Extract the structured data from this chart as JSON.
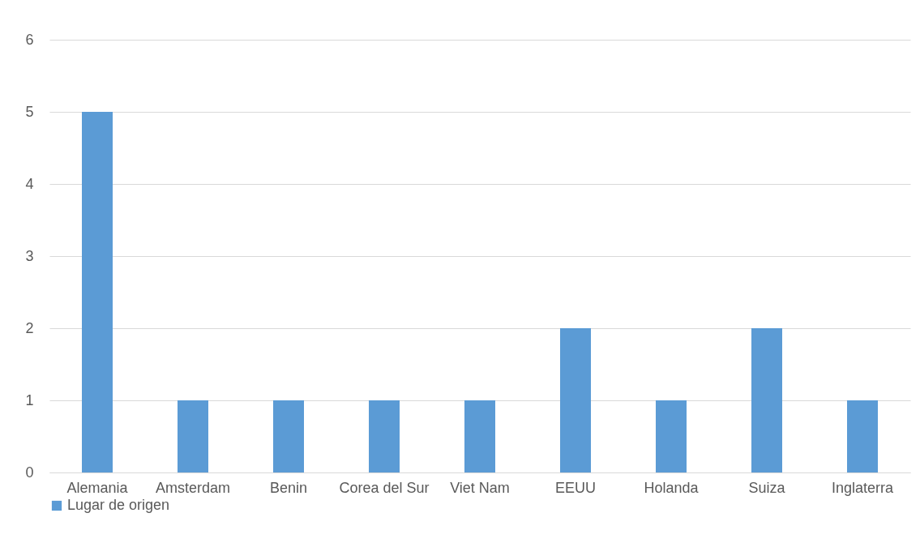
{
  "chart_data": {
    "type": "bar",
    "categories": [
      "Alemania",
      "Amsterdam",
      "Benin",
      "Corea del Sur",
      "Viet Nam",
      "EEUU",
      "Holanda",
      "Suiza",
      "Inglaterra"
    ],
    "series": [
      {
        "name": "Lugar de origen",
        "color": "#5b9bd5",
        "values": [
          5,
          1,
          1,
          1,
          1,
          2,
          1,
          2,
          1
        ]
      }
    ],
    "ylim": [
      0,
      6
    ],
    "yticks": [
      0,
      1,
      2,
      3,
      4,
      5,
      6
    ],
    "grid": "y",
    "legend": "bottom"
  }
}
